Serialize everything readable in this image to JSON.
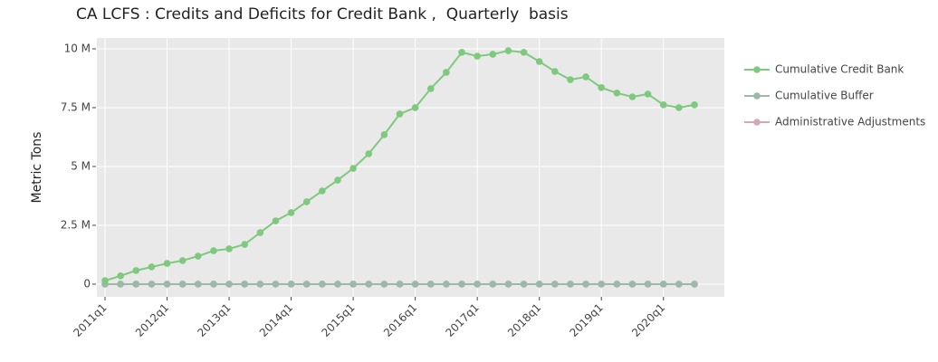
{
  "chart_data": {
    "type": "line",
    "title": "CA LCFS : Credits and Deficits for Credit Bank ,  Quarterly  basis",
    "y_label": "Metric Tons",
    "categories": [
      "2011q1",
      null,
      null,
      null,
      "2012q1",
      null,
      null,
      null,
      "2013q1",
      null,
      null,
      null,
      "2014q1",
      null,
      null,
      null,
      "2015q1",
      null,
      null,
      null,
      "2016q1",
      null,
      null,
      null,
      "2017q1",
      null,
      null,
      null,
      "2018q1",
      null,
      null,
      null,
      "2019q1",
      null,
      null,
      null,
      "2020q1",
      null,
      null
    ],
    "ylim": [
      -540000,
      10460000
    ],
    "yticks": [
      {
        "value": 0,
        "label": "0"
      },
      {
        "value": 2500000,
        "label": "2.5 M"
      },
      {
        "value": 5000000,
        "label": "5 M"
      },
      {
        "value": 7500000,
        "label": "7.5 M"
      },
      {
        "value": 10000000,
        "label": "10 M"
      }
    ],
    "grid": true,
    "legend": "right",
    "series": [
      {
        "name": "Cumulative Credit Bank",
        "color": "#7fc97f",
        "values": [
          150000,
          350000,
          580000,
          730000,
          880000,
          1000000,
          1190000,
          1420000,
          1500000,
          1690000,
          2190000,
          2690000,
          3040000,
          3500000,
          3960000,
          4420000,
          4920000,
          5540000,
          6350000,
          7230000,
          7500000,
          8310000,
          9000000,
          9850000,
          9690000,
          9770000,
          9920000,
          9850000,
          9460000,
          9040000,
          8690000,
          8810000,
          8350000,
          8120000,
          7960000,
          8080000,
          7620000,
          7500000,
          7620000
        ]
      },
      {
        "name": "Cumulative Buffer",
        "color": "#9bb8a8",
        "values": [
          0,
          0,
          0,
          0,
          0,
          0,
          0,
          0,
          0,
          0,
          0,
          0,
          0,
          0,
          0,
          0,
          0,
          0,
          0,
          0,
          0,
          0,
          0,
          0,
          0,
          0,
          0,
          0,
          0,
          0,
          0,
          0,
          0,
          0,
          0,
          0,
          0,
          0,
          0
        ]
      },
      {
        "name": "Administrative Adjustments",
        "color": "#d1a9b7",
        "values": [
          0,
          0,
          0,
          0,
          0,
          0,
          0,
          0,
          0,
          0,
          0,
          0,
          0,
          0,
          0,
          0,
          0,
          0,
          0,
          0,
          0,
          0,
          0,
          0,
          0,
          0,
          0,
          0,
          0,
          0,
          0,
          0,
          0,
          0,
          0,
          0,
          0,
          0,
          0
        ]
      }
    ]
  }
}
